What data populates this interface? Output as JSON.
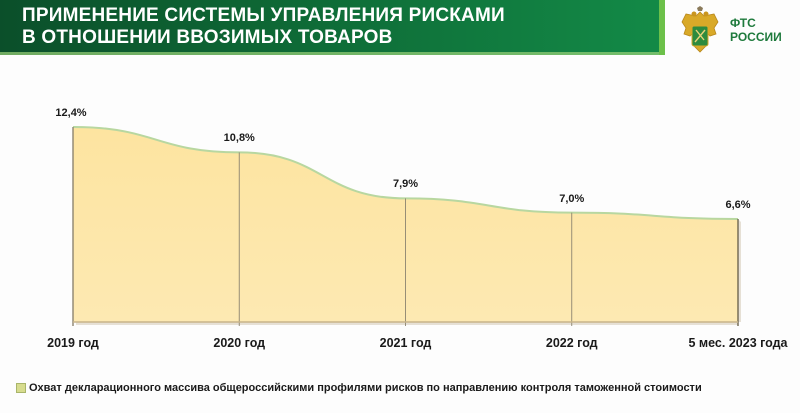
{
  "header": {
    "title_line1": "ПРИМЕНЕНИЕ СИСТЕМЫ УПРАВЛЕНИЯ РИСКАМИ",
    "title_line2": "В ОТНОШЕНИИ ВВОЗИМЫХ ТОВАРОВ",
    "logo_line1": "ФТС",
    "logo_line2": "РОССИИ",
    "logo_icon": "double-headed-eagle-emblem"
  },
  "colors": {
    "header_green": "#0e6a36",
    "accent_light_green": "#6cc04a",
    "area_fill": "#fde6a4",
    "area_top_line": "#b8d7a0"
  },
  "chart_data": {
    "type": "area",
    "title": "ПРИМЕНЕНИЕ СИСТЕМЫ УПРАВЛЕНИЯ РИСКАМИ В ОТНОШЕНИИ ВВОЗИМЫХ ТОВАРОВ",
    "categories": [
      "2019 год",
      "2020 год",
      "2021 год",
      "2022 год",
      "5 мес. 2023 года"
    ],
    "series": [
      {
        "name": "Охват декларационного массива общероссийскими профилями рисков  по направлению контроля таможенной стоимости",
        "values": [
          12.4,
          10.8,
          7.9,
          7.0,
          6.6
        ],
        "labels": [
          "12,4%",
          "10,8%",
          "7,9%",
          "7,0%",
          "6,6%"
        ]
      }
    ],
    "xlabel": "",
    "ylabel": "",
    "unit": "%",
    "grid": false,
    "legend_position": "bottom"
  },
  "legend": {
    "label": "Охват декларационного массива общероссийскими профилями рисков  по направлению контроля таможенной стоимости"
  }
}
